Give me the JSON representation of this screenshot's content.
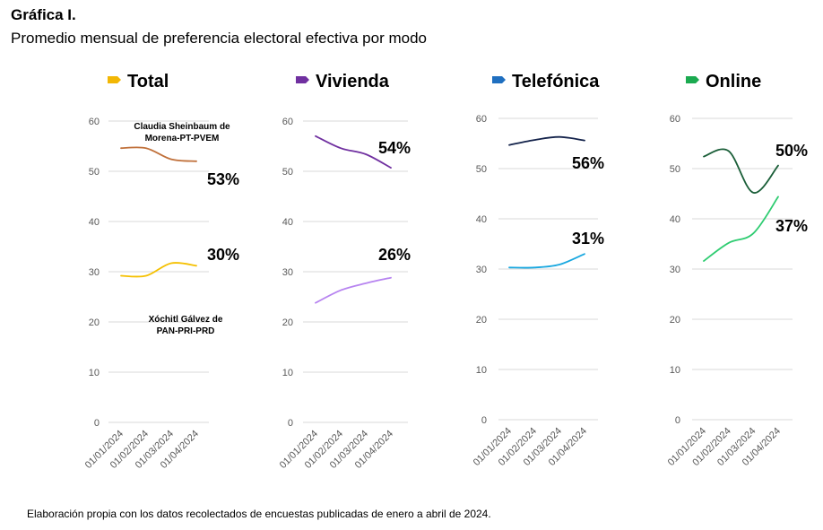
{
  "figure": {
    "title": "Gráfica I.",
    "subtitle": "Promedio mensual de preferencia electoral efectiva por modo",
    "note": "Elaboración propia con los datos recolectados de encuestas publicadas de enero a abril de 2024."
  },
  "chart_data": [
    {
      "type": "line",
      "title": "Total",
      "marker_color": "#F2B705",
      "x": [
        "01/01/2024",
        "01/02/2024",
        "01/03/2024",
        "01/04/2024"
      ],
      "ylim": [
        0,
        60
      ],
      "yticks": [
        0,
        10,
        20,
        30,
        40,
        50,
        60
      ],
      "grid": true,
      "series": [
        {
          "color": "#C0703A",
          "values": [
            54.6,
            54.6,
            52.4,
            52.0
          ],
          "end_label": "53%"
        },
        {
          "color": "#F5C000",
          "values": [
            29.2,
            29.2,
            31.7,
            31.2
          ],
          "end_label": "30%"
        }
      ],
      "annotations": [
        {
          "lines": [
            "Claudia Sheinbaum de",
            "Morena-PT-PVEM"
          ]
        },
        {
          "lines": [
            "Xóchitl Gálvez de",
            "PAN-PRI-PRD"
          ]
        }
      ]
    },
    {
      "type": "line",
      "title": "Vivienda",
      "marker_color": "#7030A0",
      "x": [
        "01/01/2024",
        "01/02/2024",
        "01/03/2024",
        "01/04/2024"
      ],
      "ylim": [
        0,
        60
      ],
      "yticks": [
        0,
        10,
        20,
        30,
        40,
        50,
        60
      ],
      "grid": true,
      "series": [
        {
          "color": "#7030A0",
          "values": [
            57.0,
            54.6,
            53.4,
            50.7
          ],
          "end_label": "54%"
        },
        {
          "color": "#B784F0",
          "values": [
            23.8,
            26.3,
            27.7,
            28.8
          ],
          "end_label": "26%"
        }
      ],
      "annotations": []
    },
    {
      "type": "line",
      "title": "Telefónica",
      "marker_color": "#1F6FC0",
      "x": [
        "01/01/2024",
        "01/02/2024",
        "01/03/2024",
        "01/04/2024"
      ],
      "ylim": [
        0,
        60
      ],
      "yticks": [
        0,
        10,
        20,
        30,
        40,
        50,
        60
      ],
      "grid": true,
      "series": [
        {
          "color": "#14234B",
          "values": [
            54.7,
            55.7,
            56.3,
            55.6
          ],
          "end_label": "56%"
        },
        {
          "color": "#1AA8E0",
          "values": [
            30.3,
            30.3,
            30.9,
            33.0
          ],
          "end_label": "31%"
        }
      ],
      "annotations": []
    },
    {
      "type": "line",
      "title": "Online",
      "marker_color": "#1BAA50",
      "x": [
        "01/01/2024",
        "01/02/2024",
        "01/03/2024",
        "01/04/2024"
      ],
      "ylim": [
        0,
        60
      ],
      "yticks": [
        0,
        10,
        20,
        30,
        40,
        50,
        60
      ],
      "grid": true,
      "series": [
        {
          "color": "#1A5E38",
          "values": [
            52.4,
            53.5,
            45.2,
            50.6
          ],
          "end_label": "50%"
        },
        {
          "color": "#2ECC71",
          "values": [
            31.6,
            35.2,
            37.1,
            44.4
          ],
          "end_label": "37%"
        }
      ],
      "annotations": []
    }
  ]
}
